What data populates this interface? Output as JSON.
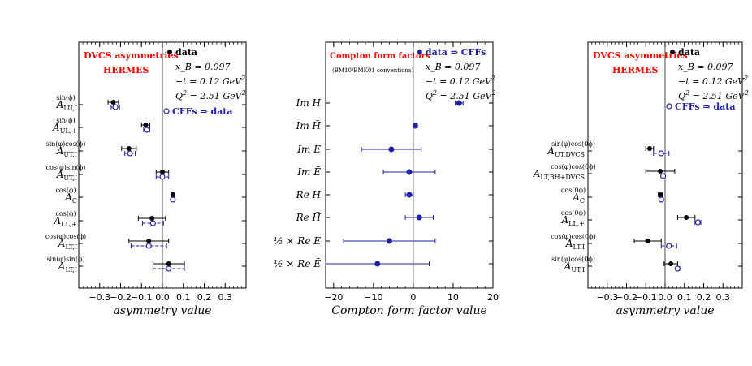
{
  "chart_data": [
    {
      "type": "scatter",
      "panel": "left",
      "title": "DVCS asymmetries",
      "subtitle": "HERMES",
      "xlabel": "asymmetry value",
      "xlim": [
        -0.4,
        0.4
      ],
      "xticks": [
        -0.3,
        -0.2,
        -0.1,
        0.0,
        0.1,
        0.2,
        0.3
      ],
      "xtick_labels": [
        "−0.3",
        "−0.2",
        "−0.1",
        "0.0",
        "0.1",
        "0.2",
        "0.3"
      ],
      "legend_data": "data",
      "legend_fit": "CFFs ⇒ data",
      "kinematics": [
        "x_B = 0.097",
        "−t = 0.12 GeV^2",
        "Q^2 = 2.51 GeV^2"
      ],
      "rows": [
        {
          "label_main": "A",
          "label_sub": "LU,I",
          "label_sup": "sin(ϕ)",
          "data": -0.235,
          "data_err": 0.025,
          "fit": -0.225,
          "fit_err": 0.02
        },
        {
          "label_main": "A",
          "label_sub": "UL,+",
          "label_sup": "sin(ϕ)",
          "data": -0.08,
          "data_err": 0.02,
          "fit": -0.075,
          "fit_err": 0.015
        },
        {
          "label_main": "A",
          "label_sub": "UT,I",
          "label_sup": "sin(φ)cos(ϕ)",
          "data": -0.16,
          "data_err": 0.035,
          "fit": -0.155,
          "fit_err": 0.025
        },
        {
          "label_main": "A",
          "label_sub": "UT,I",
          "label_sup": "cos(φ)sin(ϕ)",
          "data": 0.0,
          "data_err": 0.03,
          "fit": 0.0,
          "fit_err": 0.03
        },
        {
          "label_main": "A",
          "label_sub": "C",
          "label_sup": "cos(ϕ)",
          "data": 0.05,
          "data_err": 0.005,
          "fit": 0.05,
          "fit_err": 0.005
        },
        {
          "label_main": "A",
          "label_sub": "LL,+",
          "label_sup": "cos(ϕ)",
          "data": -0.05,
          "data_err": 0.065,
          "fit": -0.045,
          "fit_err": 0.05
        },
        {
          "label_main": "A",
          "label_sub": "LT,I",
          "label_sup": "cos(φ)cos(ϕ)",
          "data": -0.065,
          "data_err": 0.095,
          "fit": -0.065,
          "fit_err": 0.085
        },
        {
          "label_main": "A",
          "label_sub": "LT,I",
          "label_sup": "sin(φ)sin(ϕ)",
          "data": 0.03,
          "data_err": 0.075,
          "fit": 0.03,
          "fit_err": 0.075
        }
      ]
    },
    {
      "type": "scatter",
      "panel": "middle",
      "title": "Compton form factors",
      "subtitle": "(BM10/BMK01 conventions)",
      "xlabel": "Compton form factor value",
      "xlim": [
        -22,
        20
      ],
      "xticks": [
        -20,
        -10,
        0,
        10,
        20
      ],
      "xtick_labels": [
        "−20",
        "−10",
        "0",
        "10",
        "20"
      ],
      "legend_data": "data ⇒ CFFs",
      "kinematics": [
        "x_B = 0.097",
        "−t = 0.12 GeV^2",
        "Q^2 = 2.51 GeV^2"
      ],
      "rows": [
        {
          "label": "Im H",
          "value": 11.5,
          "err": 1.0
        },
        {
          "label": "Im H̃",
          "value": 0.5,
          "err": 0.5
        },
        {
          "label": "Im E",
          "value": -5.5,
          "err": 7.5
        },
        {
          "label": "Im Ē",
          "value": -1.0,
          "err": 6.5
        },
        {
          "label": "Re H",
          "value": -1.0,
          "err": 1.0
        },
        {
          "label": "Re H̃",
          "value": 1.5,
          "err": 3.5
        },
        {
          "label": "½ × Re E",
          "value": -6.0,
          "err": 11.5
        },
        {
          "label": "½ × Re Ē",
          "value": -9.0,
          "err": 13.0
        }
      ]
    },
    {
      "type": "scatter",
      "panel": "right",
      "title": "DVCS asymmetries",
      "subtitle": "HERMES",
      "xlabel": "asymmetry value",
      "xlim": [
        -0.4,
        0.4
      ],
      "xticks": [
        -0.3,
        -0.2,
        -0.1,
        0.0,
        0.1,
        0.2,
        0.3
      ],
      "xtick_labels": [
        "−0.3",
        "−0.2",
        "−0.1",
        "0.0",
        "0.1",
        "0.2",
        "0.3"
      ],
      "legend_data": "data",
      "legend_fit": "CFFs ⇒ data",
      "kinematics": [
        "x_B = 0.097",
        "−t = 0.12 GeV^2",
        "Q^2 = 2.51 GeV^2"
      ],
      "rows": [
        {
          "label_main": "A",
          "label_sub": "UT,DVCS",
          "label_sup": "sin(φ)cos(0ϕ)",
          "data": -0.08,
          "data_err": 0.02,
          "fit": -0.02,
          "fit_err": 0.04
        },
        {
          "label_main": "A",
          "label_sub": "LT,BH+DVCS",
          "label_sup": "cos(φ)cos(0ϕ)",
          "data": -0.025,
          "data_err": 0.075,
          "fit": -0.01,
          "fit_err": 0.005
        },
        {
          "label_main": "A",
          "label_sub": "C",
          "label_sup": "cos(0ϕ)",
          "data": -0.025,
          "data_err": 0.01,
          "fit": -0.02,
          "fit_err": 0.005
        },
        {
          "label_main": "A",
          "label_sub": "LL,+",
          "label_sup": "cos(0ϕ)",
          "data": 0.11,
          "data_err": 0.045,
          "fit": 0.17,
          "fit_err": 0.015
        },
        {
          "label_main": "A",
          "label_sub": "LT,I",
          "label_sup": "cos(φ)cos(0ϕ)",
          "data": -0.09,
          "data_err": 0.07,
          "fit": 0.02,
          "fit_err": 0.04
        },
        {
          "label_main": "A",
          "label_sub": "UT,I",
          "label_sup": "sin(φ)cos(0ϕ)",
          "data": 0.03,
          "data_err": 0.035,
          "fit": 0.065,
          "fit_err": 0.01
        }
      ]
    }
  ],
  "colors": {
    "data": "#000000",
    "fit": "#1f1fa8",
    "title": "#ff0000",
    "frame": "#000000",
    "zero_line": "#000000"
  }
}
